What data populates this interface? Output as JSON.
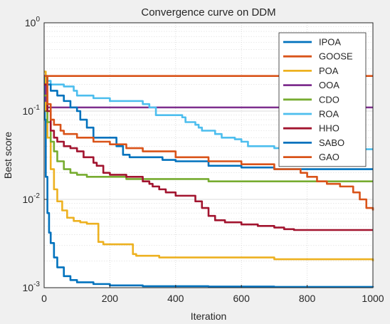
{
  "chart_data": {
    "type": "line",
    "title": "Convergence curve on DDM",
    "xlabel": "Iteration",
    "ylabel": "Best score",
    "xlim": [
      0,
      1000
    ],
    "ylim": [
      0.001,
      1
    ],
    "yscale": "log",
    "grid": true,
    "legend_position": "top-right",
    "x_ticks": [
      "0",
      "200",
      "400",
      "600",
      "800",
      "1000"
    ],
    "y_ticks": [
      {
        "value": 1,
        "base": "10",
        "exp": "0"
      },
      {
        "value": 0.1,
        "base": "10",
        "exp": "-1"
      },
      {
        "value": 0.01,
        "base": "10",
        "exp": "-2"
      },
      {
        "value": 0.001,
        "base": "10",
        "exp": "-3"
      }
    ],
    "series": [
      {
        "name": "IPOA",
        "color": "#0072BD",
        "x": [
          0,
          2,
          5,
          10,
          15,
          20,
          30,
          40,
          60,
          80,
          100,
          150,
          200,
          300,
          500,
          700,
          1000
        ],
        "y": [
          0.25,
          0.08,
          0.018,
          0.007,
          0.0042,
          0.0032,
          0.0022,
          0.0017,
          0.00135,
          0.00122,
          0.00115,
          0.0011,
          0.00106,
          0.00104,
          0.00103,
          0.00102,
          0.00101
        ]
      },
      {
        "name": "GOOSE",
        "color": "#D95319",
        "x": [
          0,
          1000
        ],
        "y": [
          0.25,
          0.25
        ]
      },
      {
        "name": "POA",
        "color": "#EDB120",
        "x": [
          0,
          5,
          10,
          20,
          30,
          40,
          55,
          70,
          90,
          110,
          130,
          160,
          165,
          180,
          200,
          250,
          270,
          280,
          300,
          350,
          500,
          700,
          900,
          1000
        ],
        "y": [
          0.28,
          0.1,
          0.05,
          0.022,
          0.013,
          0.0095,
          0.0075,
          0.0062,
          0.0057,
          0.0055,
          0.0053,
          0.0053,
          0.0033,
          0.0031,
          0.0031,
          0.0031,
          0.0024,
          0.0023,
          0.0023,
          0.0022,
          0.0022,
          0.0021,
          0.0021,
          0.002
        ]
      },
      {
        "name": "OOA",
        "color": "#7E2F8E",
        "x": [
          0,
          5,
          10,
          1000
        ],
        "y": [
          0.2,
          0.13,
          0.11,
          0.11
        ]
      },
      {
        "name": "CDO",
        "color": "#77AC30",
        "x": [
          0,
          10,
          20,
          30,
          40,
          60,
          80,
          100,
          130,
          200,
          250,
          300,
          400,
          500,
          700,
          1000
        ],
        "y": [
          0.15,
          0.075,
          0.045,
          0.035,
          0.027,
          0.022,
          0.02,
          0.019,
          0.018,
          0.018,
          0.017,
          0.017,
          0.017,
          0.016,
          0.016,
          0.016
        ]
      },
      {
        "name": "ROA",
        "color": "#4DBEEE",
        "x": [
          0,
          10,
          20,
          60,
          90,
          100,
          150,
          200,
          300,
          320,
          340,
          380,
          420,
          430,
          460,
          470,
          480,
          500,
          520,
          540,
          580,
          600,
          620,
          700,
          800,
          900,
          1000
        ],
        "y": [
          0.25,
          0.22,
          0.2,
          0.19,
          0.17,
          0.15,
          0.14,
          0.13,
          0.12,
          0.11,
          0.09,
          0.09,
          0.085,
          0.075,
          0.07,
          0.065,
          0.06,
          0.06,
          0.055,
          0.05,
          0.048,
          0.045,
          0.04,
          0.038,
          0.037,
          0.037,
          0.037
        ]
      },
      {
        "name": "HHO",
        "color": "#A2142F",
        "x": [
          0,
          10,
          20,
          30,
          40,
          60,
          80,
          100,
          120,
          150,
          160,
          180,
          200,
          250,
          300,
          320,
          330,
          350,
          370,
          400,
          460,
          480,
          500,
          520,
          550,
          600,
          650,
          700,
          730,
          760,
          800,
          900,
          1000
        ],
        "y": [
          0.2,
          0.1,
          0.06,
          0.05,
          0.045,
          0.04,
          0.038,
          0.035,
          0.03,
          0.026,
          0.024,
          0.02,
          0.019,
          0.018,
          0.016,
          0.015,
          0.014,
          0.013,
          0.012,
          0.011,
          0.0095,
          0.008,
          0.0065,
          0.0058,
          0.0055,
          0.0052,
          0.005,
          0.0048,
          0.0046,
          0.0045,
          0.0045,
          0.0045,
          0.0045
        ]
      },
      {
        "name": "SABO",
        "color": "#0072BD",
        "x": [
          0,
          10,
          20,
          40,
          60,
          80,
          100,
          110,
          130,
          150,
          200,
          220,
          240,
          260,
          300,
          360,
          400,
          500,
          600,
          700,
          800,
          1000
        ],
        "y": [
          0.25,
          0.2,
          0.17,
          0.15,
          0.13,
          0.11,
          0.1,
          0.08,
          0.065,
          0.05,
          0.05,
          0.04,
          0.032,
          0.03,
          0.03,
          0.028,
          0.027,
          0.024,
          0.023,
          0.022,
          0.022,
          0.022
        ]
      },
      {
        "name": "GAO",
        "color": "#D95319",
        "x": [
          0,
          10,
          20,
          30,
          50,
          60,
          100,
          150,
          200,
          250,
          300,
          400,
          500,
          600,
          700,
          780,
          800,
          830,
          860,
          900,
          940,
          960,
          980,
          1000
        ],
        "y": [
          0.25,
          0.12,
          0.08,
          0.07,
          0.06,
          0.055,
          0.05,
          0.045,
          0.042,
          0.038,
          0.035,
          0.03,
          0.027,
          0.025,
          0.022,
          0.02,
          0.018,
          0.016,
          0.015,
          0.014,
          0.012,
          0.01,
          0.008,
          0.0075
        ]
      }
    ]
  }
}
